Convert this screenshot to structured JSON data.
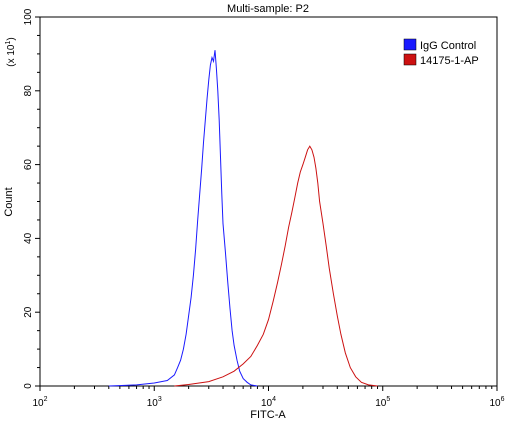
{
  "chart_data": {
    "type": "line",
    "title": "Multi-sample: P2",
    "xlabel": "FITC-A",
    "ylabel": "Count",
    "y_scale_note": "(x 10",
    "y_scale_exp": "1",
    "x_scale": "log",
    "xlim": [
      100,
      1000000
    ],
    "ylim": [
      0,
      100
    ],
    "x_ticks": [
      {
        "value": 100,
        "base": "10",
        "exp": "2"
      },
      {
        "value": 1000,
        "base": "10",
        "exp": "3"
      },
      {
        "value": 10000,
        "base": "10",
        "exp": "4"
      },
      {
        "value": 100000,
        "base": "10",
        "exp": "5"
      },
      {
        "value": 1000000,
        "base": "10",
        "exp": "6"
      }
    ],
    "y_ticks": [
      0,
      20,
      40,
      60,
      80,
      100
    ],
    "grid": false,
    "legend_position": "top-right",
    "series": [
      {
        "name": "IgG Control",
        "color": "#1a1aff",
        "points": [
          [
            400,
            0
          ],
          [
            700,
            0.3
          ],
          [
            1000,
            0.8
          ],
          [
            1300,
            1.5
          ],
          [
            1500,
            3
          ],
          [
            1600,
            5
          ],
          [
            1700,
            7
          ],
          [
            1800,
            10
          ],
          [
            1900,
            14
          ],
          [
            2000,
            19
          ],
          [
            2100,
            24
          ],
          [
            2200,
            30
          ],
          [
            2300,
            37
          ],
          [
            2400,
            45
          ],
          [
            2500,
            52
          ],
          [
            2600,
            59
          ],
          [
            2700,
            66
          ],
          [
            2800,
            72
          ],
          [
            2900,
            78
          ],
          [
            3000,
            83
          ],
          [
            3100,
            87
          ],
          [
            3200,
            89
          ],
          [
            3300,
            88
          ],
          [
            3400,
            91
          ],
          [
            3500,
            86
          ],
          [
            3600,
            80
          ],
          [
            3700,
            72
          ],
          [
            3800,
            62
          ],
          [
            3900,
            52
          ],
          [
            4000,
            44
          ],
          [
            4200,
            36
          ],
          [
            4400,
            28
          ],
          [
            4600,
            21
          ],
          [
            4800,
            15
          ],
          [
            5000,
            11
          ],
          [
            5300,
            7
          ],
          [
            5600,
            4
          ],
          [
            6000,
            2
          ],
          [
            6500,
            1
          ],
          [
            7000,
            0.3
          ],
          [
            8000,
            0
          ]
        ]
      },
      {
        "name": "14175-1-AP",
        "color": "#cc1111",
        "points": [
          [
            1500,
            0
          ],
          [
            2000,
            0.4
          ],
          [
            3000,
            1.2
          ],
          [
            4000,
            2.5
          ],
          [
            5000,
            4
          ],
          [
            6000,
            6
          ],
          [
            7000,
            8
          ],
          [
            8000,
            11
          ],
          [
            9000,
            14
          ],
          [
            10000,
            18
          ],
          [
            11000,
            23
          ],
          [
            12000,
            28
          ],
          [
            13000,
            33
          ],
          [
            14000,
            38
          ],
          [
            15000,
            43
          ],
          [
            16000,
            47
          ],
          [
            17000,
            51
          ],
          [
            18000,
            55
          ],
          [
            19000,
            58
          ],
          [
            20000,
            60
          ],
          [
            21000,
            62
          ],
          [
            22000,
            64
          ],
          [
            23000,
            65
          ],
          [
            24000,
            64
          ],
          [
            25000,
            62
          ],
          [
            26000,
            59
          ],
          [
            27000,
            55
          ],
          [
            28000,
            50
          ],
          [
            30000,
            44
          ],
          [
            32000,
            38
          ],
          [
            34000,
            32
          ],
          [
            37000,
            25
          ],
          [
            40000,
            19
          ],
          [
            43000,
            14
          ],
          [
            47000,
            9
          ],
          [
            52000,
            5
          ],
          [
            58000,
            2.5
          ],
          [
            65000,
            1
          ],
          [
            75000,
            0.3
          ],
          [
            90000,
            0
          ]
        ]
      }
    ]
  }
}
